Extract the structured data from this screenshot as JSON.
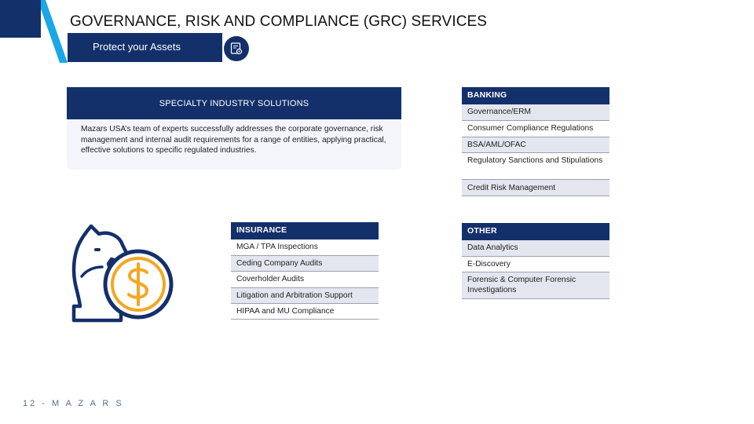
{
  "header": {
    "title": "GOVERNANCE, RISK AND COMPLIANCE (GRC) SERVICES",
    "subtitle": "Protect your Assets",
    "subtitle_icon": "document-gear-icon",
    "colors": {
      "navy": "#14306b",
      "cyan": "#1aa7e8",
      "light": "#f3f5fb",
      "row_grey": "#e3e6ef"
    }
  },
  "specialty": {
    "heading": "SPECIALTY INDUSTRY SOLUTIONS",
    "body": "Mazars USA’s team of experts successfully addresses the corporate governance, risk management and internal audit requirements for a range of entities, applying practical, effective solutions to specific regulated industries."
  },
  "banking": {
    "heading": "BANKING",
    "items": [
      "Governance/ERM",
      "Consumer Compliance Regulations",
      "BSA/AML/OFAC",
      "Regulatory Sanctions and Stipulations",
      "Credit Risk Management"
    ]
  },
  "insurance": {
    "heading": "INSURANCE",
    "items": [
      "MGA / TPA Inspections",
      "Ceding Company Audits",
      "Coverholder Audits",
      "Litigation and Arbitration Support",
      "HIPAA and MU Compliance"
    ]
  },
  "other": {
    "heading": "OTHER",
    "items": [
      "Data Analytics",
      "E-Discovery",
      "Forensic & Computer Forensic Investigations"
    ]
  },
  "illustration": {
    "icon": "chess-knight-dollar-coin-icon"
  },
  "footer": {
    "text": "12 - M A Z A R S"
  }
}
